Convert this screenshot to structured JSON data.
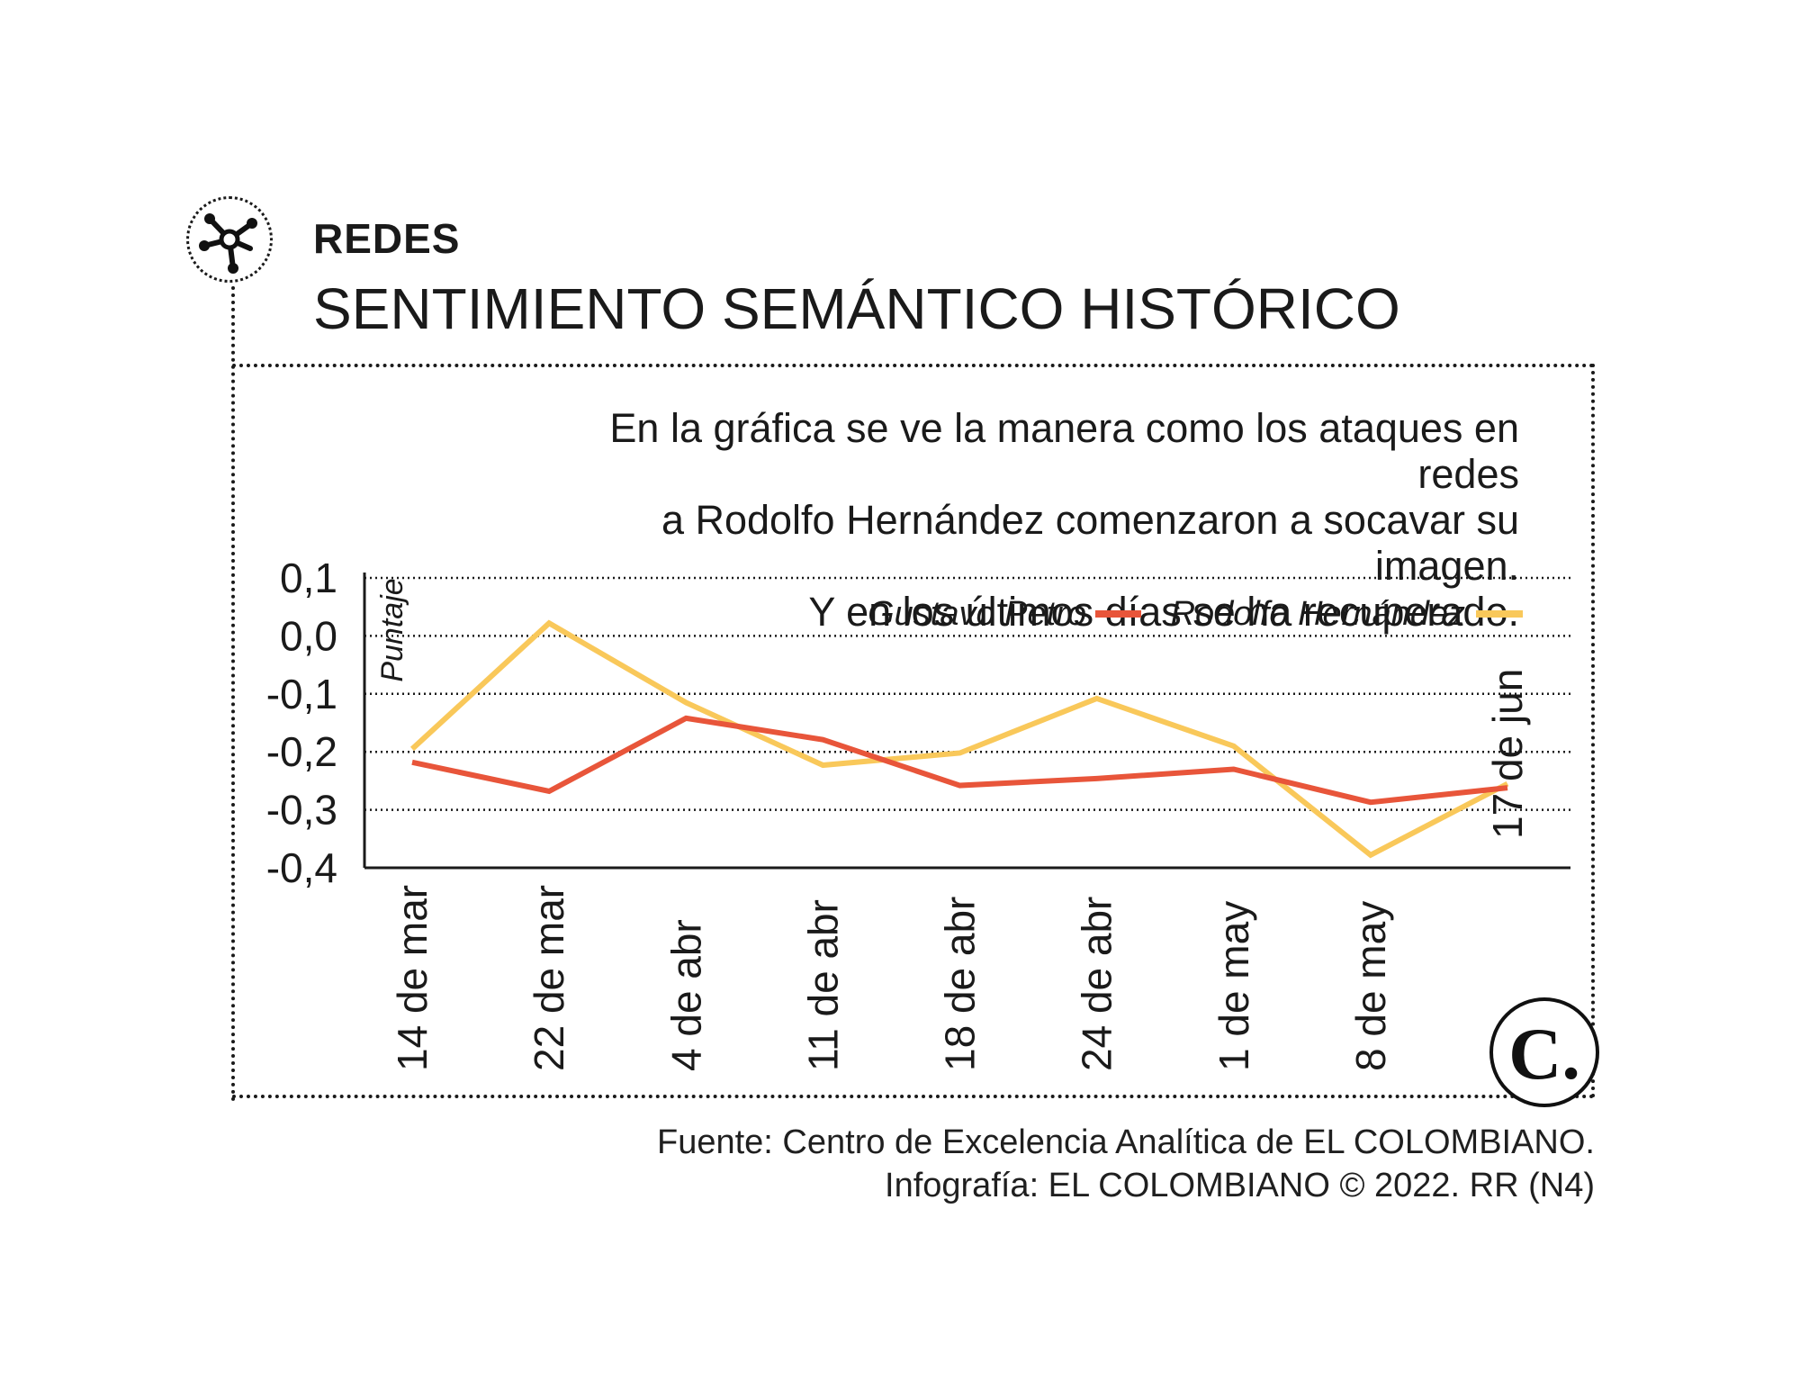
{
  "header": {
    "section_label": "REDES",
    "title": "SENTIMIENTO SEMÁNTICO HISTÓRICO",
    "icon": "network-icon"
  },
  "description": {
    "line1": "En la gráfica se ve la manera como los ataques en redes",
    "line2": "a Rodolfo Hernández comenzaron a socavar su imagen.",
    "line3": "Y en los últimos días se ha recuperado."
  },
  "footer": {
    "source": "Fuente: Centro de Excelencia Analítica de EL COLOMBIANO.",
    "credit": "Infografía: EL COLOMBIANO © 2022. RR (N4)"
  },
  "logo": {
    "letter": "C.",
    "icon": "el-colombiano-logo"
  },
  "colors": {
    "petro": "#E8553A",
    "hernandez": "#F9C85A",
    "text": "#1a1a1a"
  },
  "chart_data": {
    "type": "line",
    "ylabel": "Puntaje",
    "xlabel": "",
    "categories": [
      "14 de mar",
      "22 de mar",
      "4 de abr",
      "11 de abr",
      "18 de abr",
      "24 de abr",
      "1 de may",
      "8 de may",
      "17 de jun"
    ],
    "y_ticks": [
      "0,1",
      "0,0",
      "-0,1",
      "-0,2",
      "-0,3",
      "-0,4"
    ],
    "y_tick_values": [
      0.1,
      0.0,
      -0.1,
      -0.2,
      -0.3,
      -0.4
    ],
    "ylim": [
      -0.4,
      0.1
    ],
    "grid": "dotted horizontal",
    "legend": "top-right",
    "series": [
      {
        "name": "Gustavo Petro",
        "color": "#E8553A",
        "values": [
          -0.218,
          -0.268,
          -0.142,
          -0.179,
          -0.258,
          -0.246,
          -0.23,
          -0.287,
          -0.262
        ]
      },
      {
        "name": "Rodolfo Hernández",
        "color": "#F9C85A",
        "values": [
          -0.195,
          0.022,
          -0.115,
          -0.223,
          -0.202,
          -0.108,
          -0.19,
          -0.378,
          -0.255
        ]
      }
    ]
  }
}
